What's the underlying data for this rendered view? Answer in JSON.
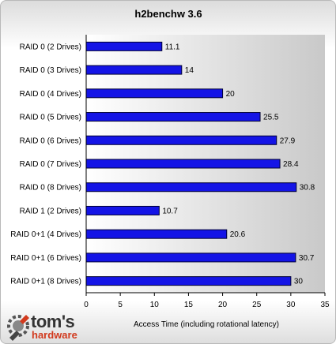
{
  "chart_data": {
    "type": "bar",
    "orientation": "horizontal",
    "title": "h2benchw 3.6",
    "xlabel": "Access Time (including rotational latency)",
    "categories": [
      "RAID 0 (2 Drives)",
      "RAID 0 (3 Drives)",
      "RAID 0 (4 Drives)",
      "RAID 0 (5 Drives)",
      "RAID 0 (6 Drives)",
      "RAID 0 (7 Drives)",
      "RAID 0 (8 Drives)",
      "RAID 1 (2 Drives)",
      "RAID 0+1 (4 Drives)",
      "RAID 0+1 (6 Drives)",
      "RAID 0+1 (8 Drives)"
    ],
    "values": [
      11.1,
      14,
      20,
      25.5,
      27.9,
      28.4,
      30.8,
      10.7,
      20.6,
      30.7,
      30
    ],
    "value_labels": [
      "11.1",
      "14",
      "20",
      "25.5",
      "27.9",
      "28.4",
      "30.8",
      "10.7",
      "20.6",
      "30.7",
      "30"
    ],
    "xlim": [
      0,
      35
    ],
    "xticks": [
      "0",
      "5",
      "10",
      "15",
      "20",
      "25",
      "30",
      "35"
    ],
    "grid": false,
    "bar_color": "#1414e6",
    "bar_edge_color": "#000033"
  },
  "logo": {
    "name": "tom's hardware logo",
    "icon": "wrench-gear-icon",
    "main": "tom's",
    "sub": "hardware"
  }
}
